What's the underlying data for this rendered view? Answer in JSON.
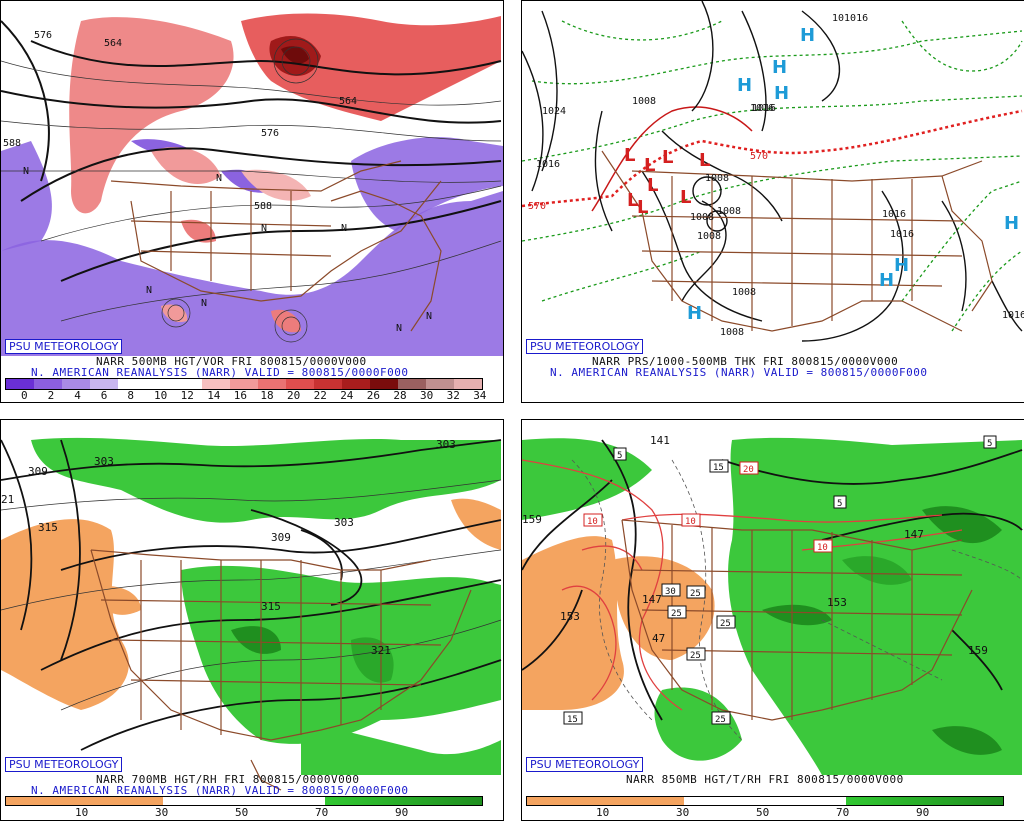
{
  "panels": [
    {
      "id": "p1",
      "badge": "PSU METEOROLOGY",
      "caption_line1": "NARR 500MB HGT/VOR FRI 800815/0000V000",
      "caption_line2": "N. AMERICAN REANALYSIS (NARR) VALID = 800815/0000F000",
      "colorbar_ticks": [
        "0",
        "2",
        "4",
        "6",
        "8",
        "10",
        "12",
        "14",
        "16",
        "18",
        "20",
        "22",
        "24",
        "26",
        "28",
        "30",
        "32",
        "34"
      ],
      "colorbar_colors": [
        "#6a2fd6",
        "#8c5fe0",
        "#a98ae6",
        "#c9b7ef",
        "#ffffff",
        "#ffffff",
        "#ffffff",
        "#f7c0c0",
        "#f19a9a",
        "#ea7272",
        "#e04e4e",
        "#c83232",
        "#a81d1d",
        "#7a0c0c",
        "#9a6060",
        "#c09090",
        "#e6b0b0"
      ],
      "contour_labels": [
        "576",
        "564",
        "564",
        "576",
        "588",
        "588"
      ],
      "markers": [
        "N",
        "N",
        "N",
        "N",
        "N",
        "N",
        "N",
        "N"
      ]
    },
    {
      "id": "p2",
      "badge": "PSU METEOROLOGY",
      "caption_line1": "NARR PRS/1000-500MB THK FRI 800815/0000V000",
      "caption_line2": "N. AMERICAN REANALYSIS (NARR) VALID = 800815/0000F000",
      "contour_labels": [
        "1024",
        "1016",
        "1008",
        "1016",
        "1008",
        "1008",
        "1008",
        "1008",
        "1008",
        "1008",
        "1016",
        "1016",
        "1016",
        "1016",
        "101016"
      ],
      "thickness_labels": [
        "570",
        "570"
      ],
      "highs": [
        "H",
        "H",
        "H",
        "H",
        "H",
        "H",
        "H",
        "H"
      ],
      "lows": [
        "L",
        "L",
        "L",
        "L",
        "L",
        "L",
        "L",
        "L"
      ]
    },
    {
      "id": "p3",
      "badge": "PSU METEOROLOGY",
      "caption_line1": "NARR 700MB HGT/RH FRI 800815/0000V000",
      "caption_line2": "N. AMERICAN REANALYSIS (NARR) VALID = 800815/0000F000",
      "colorbar_ticks": [
        "10",
        "30",
        "50",
        "70",
        "90"
      ],
      "contour_labels": [
        "309",
        "303",
        "303",
        "315",
        "309",
        "303",
        "315",
        "321",
        "21"
      ]
    },
    {
      "id": "p4",
      "badge": "PSU METEOROLOGY",
      "caption_line1": "NARR 850MB HGT/T/RH FRI 800815/0000V000",
      "caption_line2": "",
      "colorbar_ticks": [
        "10",
        "30",
        "50",
        "70",
        "90"
      ],
      "contour_labels": [
        "141",
        "159",
        "153",
        "147",
        "153",
        "159",
        "147",
        "47"
      ],
      "temp_boxes_black": [
        "5",
        "15",
        "5",
        "5",
        "30",
        "25",
        "25",
        "25",
        "25",
        "25",
        "15"
      ],
      "temp_boxes_red": [
        "10",
        "10",
        "20",
        "10",
        "10"
      ]
    }
  ],
  "colors": {
    "badge_blue": "#1a1acc",
    "dry_orange": "#f4a460",
    "moist_green": "#32c832",
    "border_brown": "#8b4a2a",
    "high_blue": "#1e9bd7",
    "low_red": "#d42020"
  }
}
